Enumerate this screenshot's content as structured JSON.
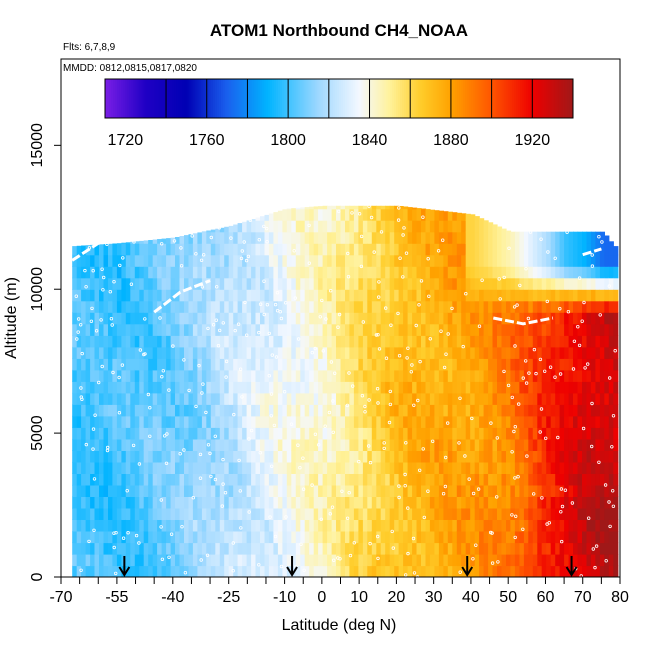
{
  "chart_data": {
    "type": "heatmap",
    "title": "ATOM1 Northbound CH4_NOAA",
    "annotations": [
      "Flts: 6,7,8,9",
      "MMDD: 0812,0815,0817,0820"
    ],
    "xlabel": "Latitude (deg N)",
    "ylabel": "Altitude (m)",
    "xlim": [
      -70,
      80
    ],
    "ylim": [
      0,
      18000
    ],
    "x_ticks_labeled": [
      -70,
      -55,
      -40,
      -25,
      -10,
      0,
      10,
      20,
      30,
      40,
      50,
      60,
      70,
      80
    ],
    "x_ticks_minor": [
      -65,
      -60,
      -50,
      -45,
      -35,
      -30,
      -20,
      -15,
      -5,
      5,
      15,
      25,
      35,
      45,
      55,
      65,
      75
    ],
    "y_ticks": [
      0,
      5000,
      10000,
      15000
    ],
    "colorbar": {
      "min": 1710,
      "max": 1940,
      "ticks": [
        1720,
        1760,
        1800,
        1840,
        1880,
        1920
      ],
      "divisions": [
        1740,
        1760,
        1780,
        1800,
        1820,
        1840,
        1860,
        1880,
        1900,
        1920
      ],
      "stops": [
        {
          "v": 1710,
          "c": "#7a1ee6"
        },
        {
          "v": 1730,
          "c": "#1f00c4"
        },
        {
          "v": 1750,
          "c": "#0000b4"
        },
        {
          "v": 1770,
          "c": "#1a60ee"
        },
        {
          "v": 1790,
          "c": "#00b4ff"
        },
        {
          "v": 1815,
          "c": "#9fd8ff"
        },
        {
          "v": 1835,
          "c": "#f4f8ff"
        },
        {
          "v": 1850,
          "c": "#fff29a"
        },
        {
          "v": 1865,
          "c": "#ffcd2b"
        },
        {
          "v": 1880,
          "c": "#ffa200"
        },
        {
          "v": 1900,
          "c": "#ff5500"
        },
        {
          "v": 1920,
          "c": "#ee0000"
        },
        {
          "v": 1940,
          "c": "#a01818"
        }
      ]
    },
    "profiles": [
      {
        "lat": -55,
        "ch4": 1800
      },
      {
        "lat": -40,
        "ch4": 1808
      },
      {
        "lat": -25,
        "ch4": 1822
      },
      {
        "lat": -10,
        "ch4": 1836
      },
      {
        "lat": 0,
        "ch4": 1843
      },
      {
        "lat": 10,
        "ch4": 1858
      },
      {
        "lat": 20,
        "ch4": 1870
      },
      {
        "lat": 30,
        "ch4": 1876
      },
      {
        "lat": 40,
        "ch4": 1880
      },
      {
        "lat": 50,
        "ch4": 1890
      },
      {
        "lat": 60,
        "ch4": 1910
      },
      {
        "lat": 70,
        "ch4": 1925
      },
      {
        "lat": 80,
        "ch4": 1932
      }
    ],
    "ceiling_profile": [
      {
        "lat": -67,
        "alt": 11500
      },
      {
        "lat": -55,
        "alt": 11600
      },
      {
        "lat": -40,
        "alt": 11800
      },
      {
        "lat": -25,
        "alt": 12200
      },
      {
        "lat": -10,
        "alt": 12800
      },
      {
        "lat": 0,
        "alt": 12900
      },
      {
        "lat": 20,
        "alt": 12900
      },
      {
        "lat": 40,
        "alt": 12600
      },
      {
        "lat": 50,
        "alt": 12000
      },
      {
        "lat": 60,
        "alt": 12000
      },
      {
        "lat": 75,
        "alt": 12000
      },
      {
        "lat": 78,
        "alt": 11500
      }
    ],
    "upper_band": [
      {
        "lat": 40,
        "ch4": 1862
      },
      {
        "lat": 50,
        "ch4": 1846
      },
      {
        "lat": 60,
        "ch4": 1818
      },
      {
        "lat": 65,
        "ch4": 1798
      },
      {
        "lat": 70,
        "ch4": 1790
      },
      {
        "lat": 75,
        "ch4": 1772
      }
    ],
    "arrow_markers_lat": [
      -53,
      -8,
      39,
      67
    ]
  }
}
